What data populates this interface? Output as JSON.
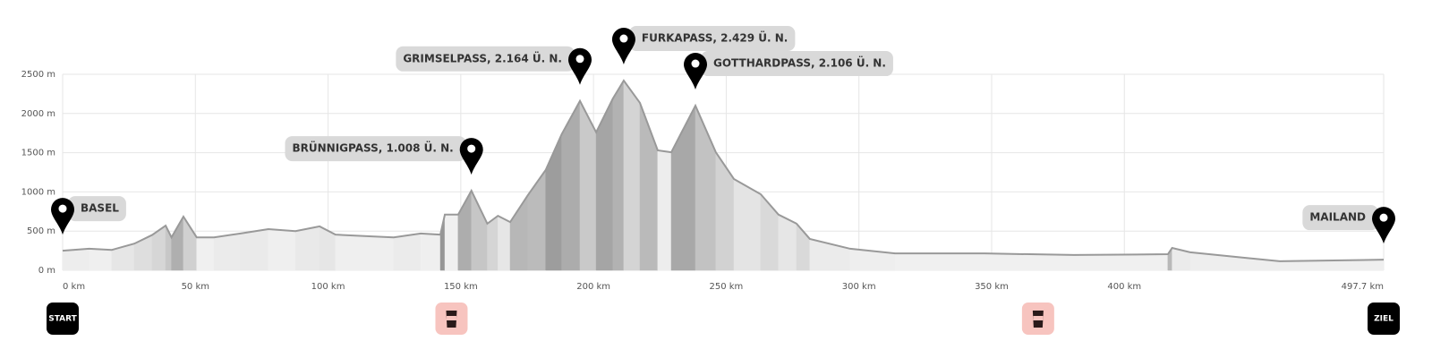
{
  "chart_data": {
    "type": "area",
    "x": [
      0,
      10,
      18.5,
      27,
      33.7,
      38.8,
      41,
      45.5,
      50.5,
      57,
      67,
      77.5,
      87.7,
      96.8,
      102.8,
      114.6,
      124.7,
      134.9,
      142.3,
      144,
      149,
      154,
      160,
      164,
      168.6,
      175.3,
      182,
      188,
      194.9,
      201,
      207.3,
      211.4,
      217.5,
      224.2,
      229.3,
      238.4,
      246.1,
      252.9,
      263,
      269.7,
      276.5,
      281.5,
      296.7,
      313.6,
      347.3,
      381,
      416.4,
      418,
      424.8,
      458.5,
      497.7
    ],
    "values": [
      250,
      275,
      260,
      340,
      450,
      570,
      420,
      685,
      420,
      420,
      470,
      525,
      500,
      560,
      455,
      435,
      420,
      470,
      455,
      710,
      710,
      1015,
      595,
      695,
      615,
      960,
      1280,
      1735,
      2160,
      1760,
      2190,
      2420,
      2135,
      1530,
      1505,
      2100,
      1505,
      1165,
      970,
      710,
      595,
      400,
      275,
      215,
      215,
      195,
      205,
      285,
      230,
      115,
      135
    ],
    "color": "#999999",
    "xlim": [
      0,
      497.7
    ],
    "xticks": [
      {
        "value": 0,
        "label": "0 km"
      },
      {
        "value": 50,
        "label": "50 km"
      },
      {
        "value": 100,
        "label": "100 km"
      },
      {
        "value": 150,
        "label": "150 km"
      },
      {
        "value": 200,
        "label": "200 km"
      },
      {
        "value": 250,
        "label": "250 km"
      },
      {
        "value": 300,
        "label": "300 km"
      },
      {
        "value": 350,
        "label": "350 km"
      },
      {
        "value": 400,
        "label": "400 km"
      },
      {
        "value": 497.7,
        "label": "497.7 km"
      }
    ],
    "ylim": [
      0,
      2500
    ],
    "yticks": [
      {
        "value": 0,
        "label": "0 m"
      },
      {
        "value": 500,
        "label": "500 m"
      },
      {
        "value": 1000,
        "label": "1000 m"
      },
      {
        "value": 1500,
        "label": "1500 m"
      },
      {
        "value": 2000,
        "label": "2000 m"
      },
      {
        "value": 2500,
        "label": "2500 m"
      }
    ],
    "grid": true,
    "markers": [
      {
        "km": 0,
        "label": "BASEL"
      },
      {
        "km": 154,
        "label": "BRÜNNIGPASS, 1.008 Ü. N."
      },
      {
        "km": 194.9,
        "label": "GRIMSELPASS, 2.164 Ü. N."
      },
      {
        "km": 211.4,
        "label": "FURKAPASS, 2.429 Ü. N."
      },
      {
        "km": 238.4,
        "label": "GOTTHARDPASS, 2.106 Ü. N."
      },
      {
        "km": 497.7,
        "label": "MAILAND"
      }
    ],
    "start": {
      "km": 0,
      "label": "START"
    },
    "finish": {
      "km": 497.7,
      "label": "ZIEL"
    },
    "aid_stations_km": [
      146.5,
      367.5
    ]
  }
}
